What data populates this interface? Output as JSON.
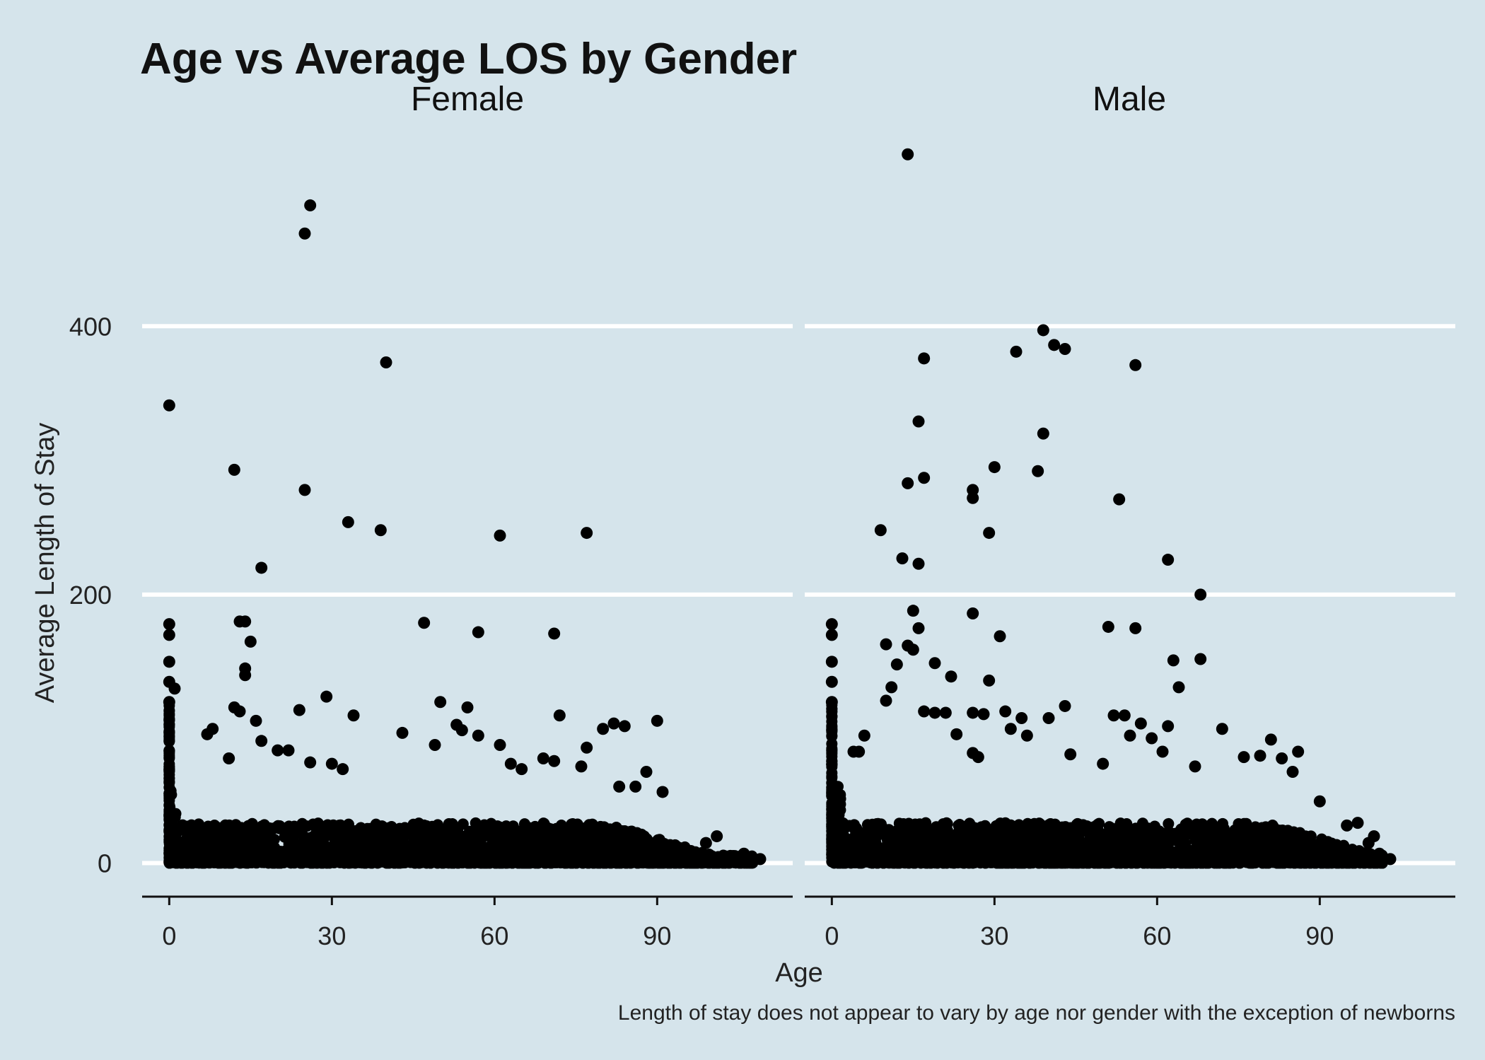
{
  "chart_data": {
    "type": "scatter",
    "title": "Age vs Average LOS by Gender",
    "xlabel": "Age",
    "ylabel": "Average Length of Stay",
    "caption": "Length of stay does not appear to vary by age nor gender with the exception of newborns",
    "xlim": [
      -5,
      115
    ],
    "ylim": [
      -25,
      535
    ],
    "x_ticks": [
      0,
      30,
      60,
      90
    ],
    "y_ticks": [
      0,
      200,
      400
    ],
    "grid": "horizontal major lines only",
    "colors": {
      "background": "#d5e4eb",
      "grid": "#ffffff",
      "points": "#000000",
      "axis": "#111111"
    },
    "facets": [
      {
        "name": "Female",
        "max_age": 109,
        "outliers": [
          {
            "x": 0,
            "y": 341
          },
          {
            "x": 0,
            "y": 178
          },
          {
            "x": 0,
            "y": 170
          },
          {
            "x": 0,
            "y": 150
          },
          {
            "x": 0,
            "y": 135
          },
          {
            "x": 0,
            "y": 120
          },
          {
            "x": 1,
            "y": 130
          },
          {
            "x": 26,
            "y": 490
          },
          {
            "x": 25,
            "y": 469
          },
          {
            "x": 40,
            "y": 373
          },
          {
            "x": 12,
            "y": 293
          },
          {
            "x": 25,
            "y": 278
          },
          {
            "x": 33,
            "y": 254
          },
          {
            "x": 39,
            "y": 248
          },
          {
            "x": 61,
            "y": 244
          },
          {
            "x": 77,
            "y": 246
          },
          {
            "x": 17,
            "y": 220
          },
          {
            "x": 13,
            "y": 180
          },
          {
            "x": 14,
            "y": 180
          },
          {
            "x": 15,
            "y": 165
          },
          {
            "x": 14,
            "y": 145
          },
          {
            "x": 14,
            "y": 140
          },
          {
            "x": 47,
            "y": 179
          },
          {
            "x": 57,
            "y": 172
          },
          {
            "x": 71,
            "y": 171
          },
          {
            "x": 12,
            "y": 116
          },
          {
            "x": 13,
            "y": 113
          },
          {
            "x": 24,
            "y": 114
          },
          {
            "x": 29,
            "y": 124
          },
          {
            "x": 34,
            "y": 110
          },
          {
            "x": 50,
            "y": 120
          },
          {
            "x": 55,
            "y": 116
          },
          {
            "x": 72,
            "y": 110
          },
          {
            "x": 90,
            "y": 106
          },
          {
            "x": 16,
            "y": 106
          },
          {
            "x": 8,
            "y": 100
          },
          {
            "x": 7,
            "y": 96
          },
          {
            "x": 43,
            "y": 97
          },
          {
            "x": 53,
            "y": 103
          },
          {
            "x": 54,
            "y": 99
          },
          {
            "x": 57,
            "y": 95
          },
          {
            "x": 80,
            "y": 100
          },
          {
            "x": 82,
            "y": 104
          },
          {
            "x": 84,
            "y": 102
          },
          {
            "x": 17,
            "y": 91
          },
          {
            "x": 20,
            "y": 84
          },
          {
            "x": 22,
            "y": 84
          },
          {
            "x": 49,
            "y": 88
          },
          {
            "x": 61,
            "y": 88
          },
          {
            "x": 77,
            "y": 86
          },
          {
            "x": 11,
            "y": 78
          },
          {
            "x": 26,
            "y": 75
          },
          {
            "x": 30,
            "y": 74
          },
          {
            "x": 32,
            "y": 70
          },
          {
            "x": 69,
            "y": 78
          },
          {
            "x": 71,
            "y": 76
          },
          {
            "x": 76,
            "y": 72
          },
          {
            "x": 88,
            "y": 68
          },
          {
            "x": 91,
            "y": 53
          },
          {
            "x": 83,
            "y": 57
          },
          {
            "x": 86,
            "y": 57
          },
          {
            "x": 63,
            "y": 74
          },
          {
            "x": 65,
            "y": 70
          },
          {
            "x": 104,
            "y": 3
          },
          {
            "x": 106,
            "y": 7
          },
          {
            "x": 109,
            "y": 3
          },
          {
            "x": 101,
            "y": 20
          },
          {
            "x": 99,
            "y": 15
          }
        ]
      },
      {
        "name": "Male",
        "max_age": 103,
        "outliers": [
          {
            "x": 0,
            "y": 178
          },
          {
            "x": 0,
            "y": 170
          },
          {
            "x": 0,
            "y": 150
          },
          {
            "x": 0,
            "y": 135
          },
          {
            "x": 0,
            "y": 120
          },
          {
            "x": 14,
            "y": 528
          },
          {
            "x": 39,
            "y": 397
          },
          {
            "x": 41,
            "y": 386
          },
          {
            "x": 43,
            "y": 383
          },
          {
            "x": 34,
            "y": 381
          },
          {
            "x": 17,
            "y": 376
          },
          {
            "x": 56,
            "y": 371
          },
          {
            "x": 16,
            "y": 329
          },
          {
            "x": 39,
            "y": 320
          },
          {
            "x": 30,
            "y": 295
          },
          {
            "x": 38,
            "y": 292
          },
          {
            "x": 17,
            "y": 287
          },
          {
            "x": 14,
            "y": 283
          },
          {
            "x": 26,
            "y": 278
          },
          {
            "x": 26,
            "y": 272
          },
          {
            "x": 53,
            "y": 271
          },
          {
            "x": 9,
            "y": 248
          },
          {
            "x": 29,
            "y": 246
          },
          {
            "x": 13,
            "y": 227
          },
          {
            "x": 16,
            "y": 223
          },
          {
            "x": 62,
            "y": 226
          },
          {
            "x": 68,
            "y": 200
          },
          {
            "x": 15,
            "y": 188
          },
          {
            "x": 26,
            "y": 186
          },
          {
            "x": 16,
            "y": 175
          },
          {
            "x": 51,
            "y": 176
          },
          {
            "x": 56,
            "y": 175
          },
          {
            "x": 31,
            "y": 169
          },
          {
            "x": 10,
            "y": 163
          },
          {
            "x": 14,
            "y": 162
          },
          {
            "x": 15,
            "y": 159
          },
          {
            "x": 12,
            "y": 148
          },
          {
            "x": 19,
            "y": 149
          },
          {
            "x": 63,
            "y": 151
          },
          {
            "x": 68,
            "y": 152
          },
          {
            "x": 22,
            "y": 139
          },
          {
            "x": 29,
            "y": 136
          },
          {
            "x": 11,
            "y": 131
          },
          {
            "x": 64,
            "y": 131
          },
          {
            "x": 10,
            "y": 121
          },
          {
            "x": 43,
            "y": 117
          },
          {
            "x": 17,
            "y": 113
          },
          {
            "x": 19,
            "y": 112
          },
          {
            "x": 21,
            "y": 112
          },
          {
            "x": 26,
            "y": 112
          },
          {
            "x": 28,
            "y": 111
          },
          {
            "x": 32,
            "y": 113
          },
          {
            "x": 35,
            "y": 108
          },
          {
            "x": 40,
            "y": 108
          },
          {
            "x": 52,
            "y": 110
          },
          {
            "x": 54,
            "y": 110
          },
          {
            "x": 57,
            "y": 104
          },
          {
            "x": 62,
            "y": 102
          },
          {
            "x": 72,
            "y": 100
          },
          {
            "x": 33,
            "y": 100
          },
          {
            "x": 6,
            "y": 95
          },
          {
            "x": 23,
            "y": 96
          },
          {
            "x": 36,
            "y": 95
          },
          {
            "x": 55,
            "y": 95
          },
          {
            "x": 59,
            "y": 93
          },
          {
            "x": 81,
            "y": 92
          },
          {
            "x": 4,
            "y": 83
          },
          {
            "x": 5,
            "y": 83
          },
          {
            "x": 26,
            "y": 82
          },
          {
            "x": 27,
            "y": 79
          },
          {
            "x": 44,
            "y": 81
          },
          {
            "x": 61,
            "y": 83
          },
          {
            "x": 76,
            "y": 79
          },
          {
            "x": 79,
            "y": 80
          },
          {
            "x": 86,
            "y": 83
          },
          {
            "x": 83,
            "y": 78
          },
          {
            "x": 50,
            "y": 74
          },
          {
            "x": 67,
            "y": 72
          },
          {
            "x": 85,
            "y": 68
          },
          {
            "x": 90,
            "y": 46
          },
          {
            "x": 95,
            "y": 28
          },
          {
            "x": 97,
            "y": 30
          },
          {
            "x": 99,
            "y": 15
          },
          {
            "x": 100,
            "y": 20
          },
          {
            "x": 101,
            "y": 7
          },
          {
            "x": 103,
            "y": 3
          }
        ]
      }
    ]
  }
}
